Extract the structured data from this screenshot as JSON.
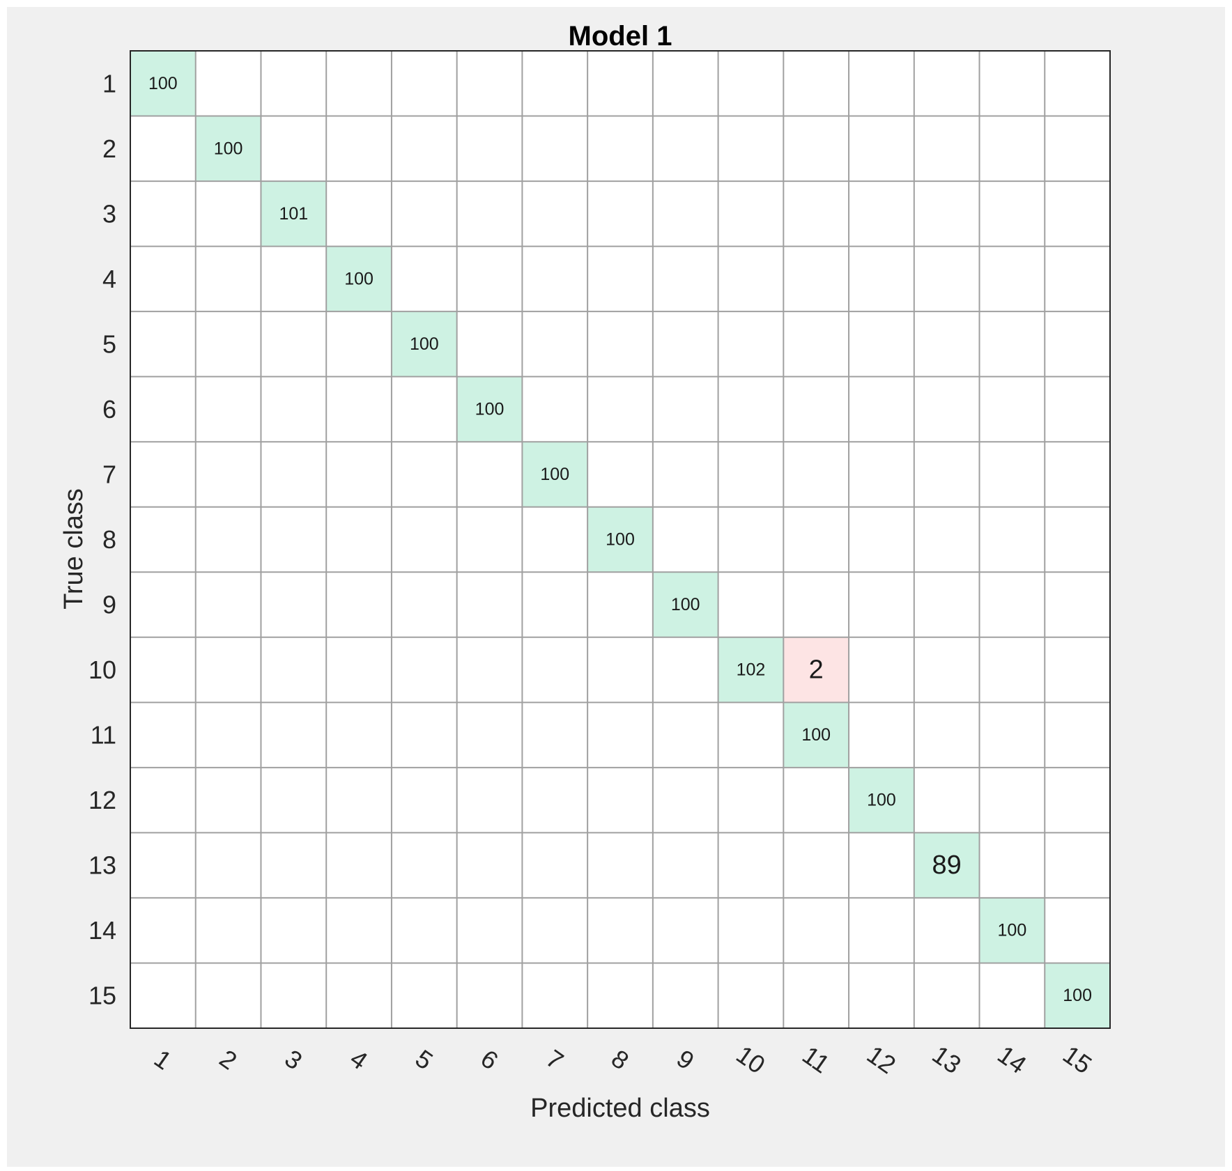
{
  "chart_data": {
    "type": "heatmap",
    "title": "Model 1",
    "xlabel": "Predicted class",
    "ylabel": "True class",
    "x_categories": [
      "1",
      "2",
      "3",
      "4",
      "5",
      "6",
      "7",
      "8",
      "9",
      "10",
      "11",
      "12",
      "13",
      "14",
      "15"
    ],
    "y_categories": [
      "1",
      "2",
      "3",
      "4",
      "5",
      "6",
      "7",
      "8",
      "9",
      "10",
      "11",
      "12",
      "13",
      "14",
      "15"
    ],
    "cells": [
      {
        "true": "1",
        "predicted": "1",
        "value": 100
      },
      {
        "true": "2",
        "predicted": "2",
        "value": 100
      },
      {
        "true": "3",
        "predicted": "3",
        "value": 101
      },
      {
        "true": "4",
        "predicted": "4",
        "value": 100
      },
      {
        "true": "5",
        "predicted": "5",
        "value": 100
      },
      {
        "true": "6",
        "predicted": "6",
        "value": 100
      },
      {
        "true": "7",
        "predicted": "7",
        "value": 100
      },
      {
        "true": "8",
        "predicted": "8",
        "value": 100
      },
      {
        "true": "9",
        "predicted": "9",
        "value": 100
      },
      {
        "true": "10",
        "predicted": "10",
        "value": 102
      },
      {
        "true": "10",
        "predicted": "11",
        "value": 2
      },
      {
        "true": "11",
        "predicted": "11",
        "value": 100
      },
      {
        "true": "12",
        "predicted": "12",
        "value": 100
      },
      {
        "true": "13",
        "predicted": "13",
        "value": 89
      },
      {
        "true": "14",
        "predicted": "14",
        "value": 100
      },
      {
        "true": "15",
        "predicted": "15",
        "value": 100
      }
    ],
    "grid": true,
    "colors": {
      "correct": "#cef2e3",
      "incorrect": "#fde4e4",
      "empty": "#ffffff",
      "grid_line": "#a0a0a0",
      "border": "#262626",
      "figure_background": "#f0f0f0"
    }
  }
}
